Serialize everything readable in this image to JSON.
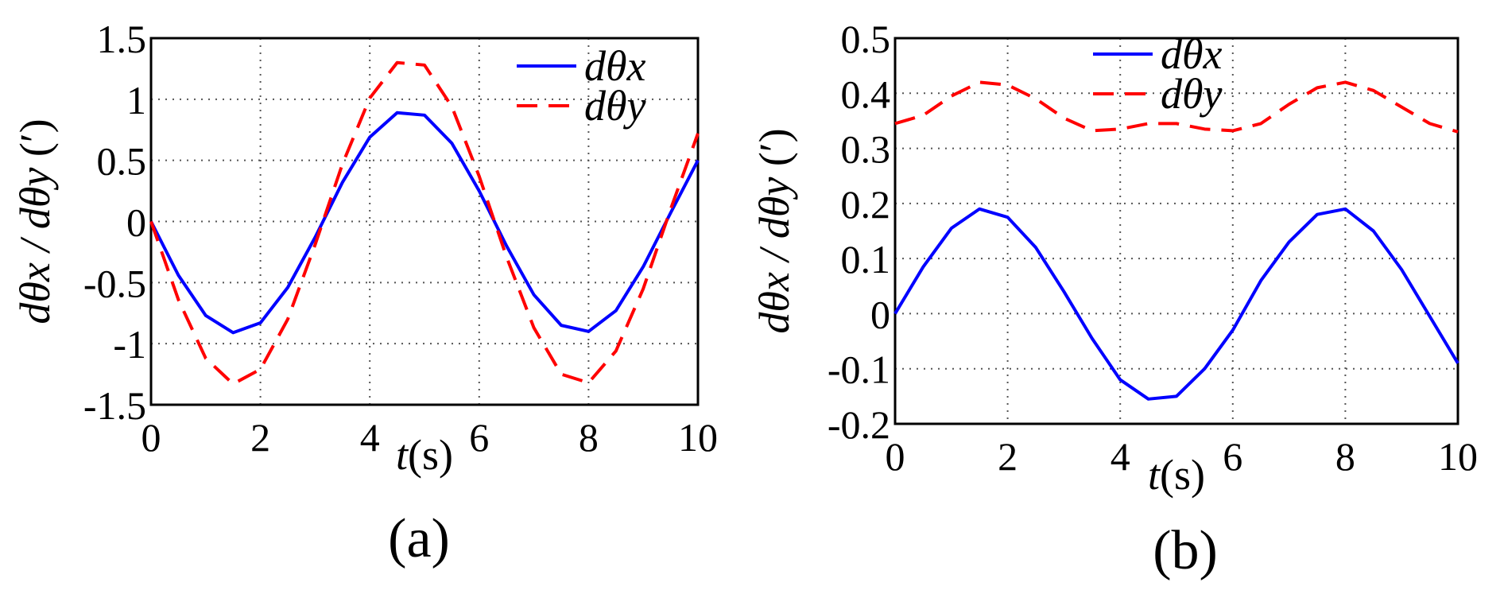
{
  "colors": {
    "dtx": "#0000ff",
    "dty": "#ff0000",
    "grid": "#555555"
  },
  "chart_data": [
    {
      "type": "line",
      "caption": "(a)",
      "xlabel_italic": "t",
      "xlabel_unit": "(s)",
      "ylabel_italic": "dθx / dθy",
      "ylabel_unit": " (′)",
      "xlim": [
        0,
        10
      ],
      "ylim": [
        -1.5,
        1.5
      ],
      "xticks": [
        0,
        2,
        4,
        6,
        8,
        10
      ],
      "yticks": [
        -1.5,
        -1,
        -0.5,
        0,
        0.5,
        1,
        1.5
      ],
      "xtick_labels": [
        "0",
        "2",
        "4",
        "6",
        "8",
        "10"
      ],
      "ytick_labels": [
        "-1.5",
        "-1",
        "-0.5",
        "0",
        "0.5",
        "1",
        "1.5"
      ],
      "grid": true,
      "legend": "top-right",
      "x": [
        0,
        0.5,
        1,
        1.5,
        2,
        2.5,
        3,
        3.5,
        4,
        4.5,
        5,
        5.5,
        6,
        6.5,
        7,
        7.5,
        8,
        8.5,
        9,
        9.5,
        10
      ],
      "series": [
        {
          "name": "dθx",
          "style": "solid",
          "values": [
            0,
            -0.44,
            -0.77,
            -0.91,
            -0.83,
            -0.54,
            -0.13,
            0.32,
            0.69,
            0.89,
            0.87,
            0.64,
            0.25,
            -0.2,
            -0.6,
            -0.85,
            -0.9,
            -0.73,
            -0.37,
            0.07,
            0.5
          ]
        },
        {
          "name": "dθy",
          "style": "dashed",
          "values": [
            0,
            -0.64,
            -1.12,
            -1.33,
            -1.21,
            -0.8,
            -0.19,
            0.47,
            1.01,
            1.3,
            1.28,
            0.94,
            0.37,
            -0.29,
            -0.87,
            -1.25,
            -1.32,
            -1.06,
            -0.55,
            0.1,
            0.72
          ]
        }
      ]
    },
    {
      "type": "line",
      "caption": "(b)",
      "xlabel_italic": "t",
      "xlabel_unit": "(s)",
      "ylabel_italic": "dθx / dθy",
      "ylabel_unit": " (′)",
      "xlim": [
        0,
        10
      ],
      "ylim": [
        -0.2,
        0.5
      ],
      "xticks": [
        0,
        2,
        4,
        6,
        8,
        10
      ],
      "yticks": [
        -0.2,
        -0.1,
        0,
        0.1,
        0.2,
        0.3,
        0.4,
        0.5
      ],
      "xtick_labels": [
        "0",
        "2",
        "4",
        "6",
        "8",
        "10"
      ],
      "ytick_labels": [
        "-0.2",
        "-0.1",
        "0",
        "0.1",
        "0.2",
        "0.3",
        "0.4",
        "0.5"
      ],
      "grid": true,
      "legend": "top-center",
      "x": [
        0,
        0.5,
        1,
        1.5,
        2,
        2.5,
        3,
        3.5,
        4,
        4.5,
        5,
        5.5,
        6,
        6.5,
        7,
        7.5,
        8,
        8.5,
        9,
        9.5,
        10
      ],
      "series": [
        {
          "name": "dθx",
          "style": "solid",
          "values": [
            0,
            0.085,
            0.155,
            0.19,
            0.175,
            0.12,
            0.04,
            -0.045,
            -0.12,
            -0.155,
            -0.15,
            -0.1,
            -0.03,
            0.06,
            0.13,
            0.18,
            0.19,
            0.15,
            0.08,
            -0.005,
            -0.09
          ]
        },
        {
          "name": "dθy",
          "style": "dashed",
          "values": [
            0.345,
            0.36,
            0.395,
            0.42,
            0.415,
            0.39,
            0.355,
            0.332,
            0.335,
            0.345,
            0.345,
            0.335,
            0.332,
            0.345,
            0.38,
            0.41,
            0.42,
            0.405,
            0.375,
            0.345,
            0.33
          ]
        }
      ]
    }
  ]
}
